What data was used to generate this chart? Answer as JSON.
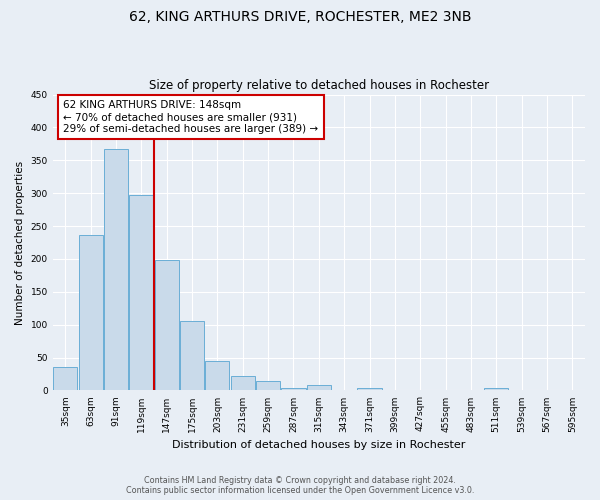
{
  "title": "62, KING ARTHURS DRIVE, ROCHESTER, ME2 3NB",
  "subtitle": "Size of property relative to detached houses in Rochester",
  "xlabel": "Distribution of detached houses by size in Rochester",
  "ylabel": "Number of detached properties",
  "bar_labels": [
    "35sqm",
    "63sqm",
    "91sqm",
    "119sqm",
    "147sqm",
    "175sqm",
    "203sqm",
    "231sqm",
    "259sqm",
    "287sqm",
    "315sqm",
    "343sqm",
    "371sqm",
    "399sqm",
    "427sqm",
    "455sqm",
    "483sqm",
    "511sqm",
    "539sqm",
    "567sqm",
    "595sqm"
  ],
  "bar_values": [
    35,
    236,
    367,
    297,
    198,
    105,
    45,
    22,
    14,
    3,
    9,
    1,
    3,
    0,
    0,
    0,
    0,
    3,
    0,
    0,
    0
  ],
  "bar_color": "#c9daea",
  "bar_edge_color": "#6aaed6",
  "vline_color": "#cc0000",
  "vline_x": 3.5,
  "annotation_text": "62 KING ARTHURS DRIVE: 148sqm\n← 70% of detached houses are smaller (931)\n29% of semi-detached houses are larger (389) →",
  "annotation_box_facecolor": "#ffffff",
  "annotation_box_edgecolor": "#cc0000",
  "ylim": [
    0,
    450
  ],
  "yticks": [
    0,
    50,
    100,
    150,
    200,
    250,
    300,
    350,
    400,
    450
  ],
  "footer_line1": "Contains HM Land Registry data © Crown copyright and database right 2024.",
  "footer_line2": "Contains public sector information licensed under the Open Government Licence v3.0.",
  "bg_color": "#e8eef5",
  "plot_bg_color": "#e8eef5",
  "grid_color": "#ffffff",
  "title_fontsize": 10,
  "subtitle_fontsize": 8.5,
  "xlabel_fontsize": 8,
  "ylabel_fontsize": 7.5,
  "tick_fontsize": 6.5,
  "annotation_fontsize": 7.5,
  "footer_fontsize": 5.8
}
